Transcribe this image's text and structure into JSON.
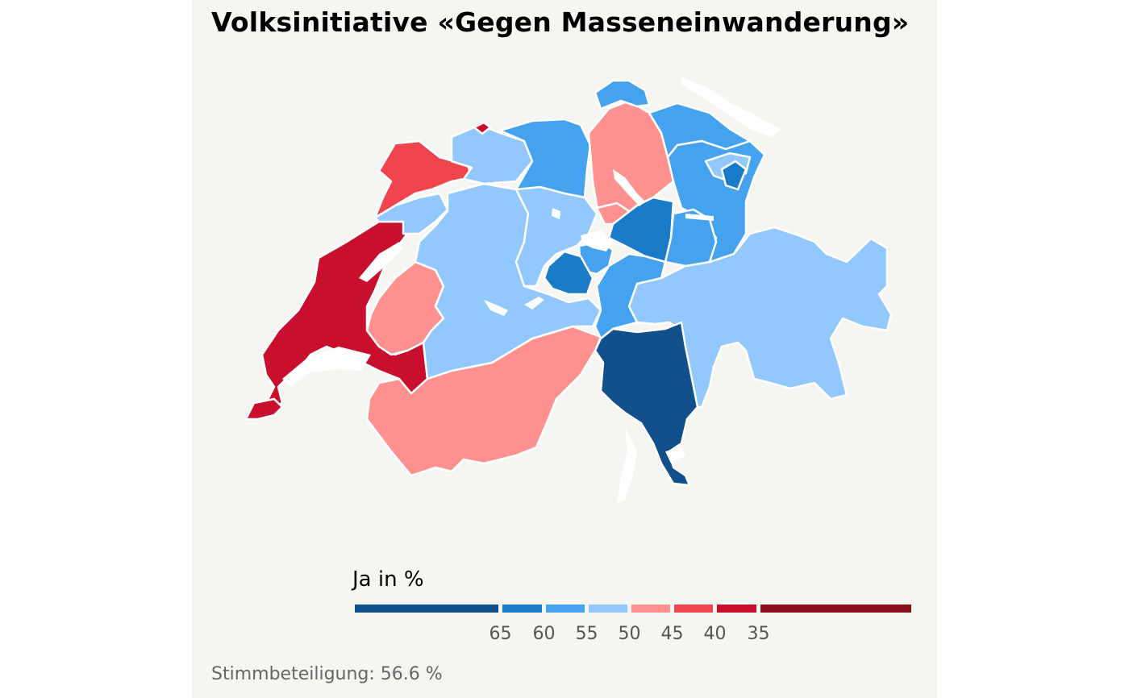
{
  "title": "Volksinitiative «Gegen Masseneinwanderung»",
  "legend": {
    "title": "Ja in %",
    "classes": [
      {
        "color": "#11508a"
      },
      {
        "color": "#1a7bc8"
      },
      {
        "color": "#45a2ef"
      },
      {
        "color": "#92c8fd"
      },
      {
        "color": "#ff9191"
      },
      {
        "color": "#f0454e"
      },
      {
        "color": "#c8102e"
      },
      {
        "color": "#8e0f1e"
      }
    ],
    "ticks": [
      "65",
      "60",
      "55",
      "50",
      "45",
      "40",
      "35"
    ]
  },
  "caption": "Stimmbeteiligung: 56.6 %",
  "colors": {
    "background": "#f5f5f2",
    "border": "#ffffff",
    "lake": "#ffffff"
  }
}
